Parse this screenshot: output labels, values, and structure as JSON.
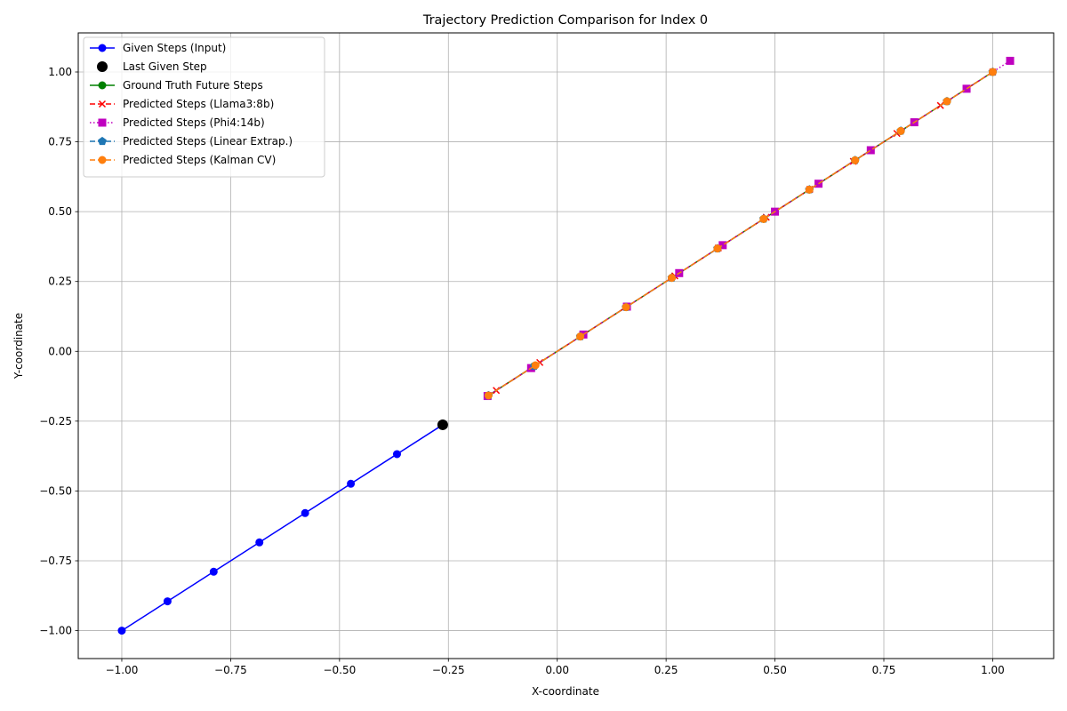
{
  "chart_data": {
    "type": "line",
    "title": "Trajectory Prediction Comparison for Index 0",
    "xlabel": "X-coordinate",
    "ylabel": "Y-coordinate",
    "xlim": [
      -1.1,
      1.14
    ],
    "ylim": [
      -1.1,
      1.14
    ],
    "xticks": [
      -1.0,
      -0.75,
      -0.5,
      -0.25,
      0.0,
      0.25,
      0.5,
      0.75,
      1.0
    ],
    "xtick_labels": [
      "−1.00",
      "−0.75",
      "−0.50",
      "−0.25",
      "0.00",
      "0.25",
      "0.50",
      "0.75",
      "1.00"
    ],
    "yticks": [
      -1.0,
      -0.75,
      -0.5,
      -0.25,
      0.0,
      0.25,
      0.5,
      0.75,
      1.0
    ],
    "ytick_labels": [
      "−1.00",
      "−0.75",
      "−0.50",
      "−0.25",
      "0.00",
      "0.25",
      "0.50",
      "0.75",
      "1.00"
    ],
    "grid": true,
    "legend_position": "top-left",
    "series": [
      {
        "name": "Given Steps (Input)",
        "color": "#0000ff",
        "line": "solid",
        "marker": "circle",
        "x": [
          -1.0,
          -0.895,
          -0.789,
          -0.684,
          -0.579,
          -0.474,
          -0.368,
          -0.263
        ],
        "y": [
          -1.0,
          -0.895,
          -0.789,
          -0.684,
          -0.579,
          -0.474,
          -0.368,
          -0.263
        ]
      },
      {
        "name": "Last Given Step",
        "color": "#000000",
        "line": "none",
        "marker": "big-circle",
        "x": [
          -0.263
        ],
        "y": [
          -0.263
        ]
      },
      {
        "name": "Ground Truth Future Steps",
        "color": "#008000",
        "line": "solid",
        "marker": "circle",
        "x": [
          -0.158,
          -0.053,
          0.053,
          0.158,
          0.263,
          0.368,
          0.474,
          0.579,
          0.684,
          0.789,
          0.895,
          1.0
        ],
        "y": [
          -0.158,
          -0.053,
          0.053,
          0.158,
          0.263,
          0.368,
          0.474,
          0.579,
          0.684,
          0.789,
          0.895,
          1.0
        ]
      },
      {
        "name": "Predicted Steps (Llama3:8b)",
        "color": "#ff0000",
        "line": "dashed",
        "marker": "x",
        "x": [
          -0.14,
          -0.04,
          0.06,
          0.16,
          0.27,
          0.37,
          0.48,
          0.58,
          0.68,
          0.78,
          0.88,
          1.0
        ],
        "y": [
          -0.14,
          -0.04,
          0.06,
          0.16,
          0.27,
          0.37,
          0.48,
          0.58,
          0.68,
          0.78,
          0.88,
          1.0
        ]
      },
      {
        "name": "Predicted Steps (Phi4:14b)",
        "color": "#bf00bf",
        "line": "dotted",
        "marker": "square",
        "x": [
          -0.16,
          -0.06,
          0.06,
          0.16,
          0.28,
          0.38,
          0.5,
          0.6,
          0.72,
          0.82,
          0.94,
          1.04
        ],
        "y": [
          -0.16,
          -0.06,
          0.06,
          0.16,
          0.28,
          0.38,
          0.5,
          0.6,
          0.72,
          0.82,
          0.94,
          1.04
        ]
      },
      {
        "name": "Predicted Steps (Linear Extrap.)",
        "color": "#1f77b4",
        "line": "dashed",
        "marker": "pentagon",
        "x": [
          -0.158,
          -0.053,
          0.053,
          0.158,
          0.263,
          0.368,
          0.474,
          0.579,
          0.684,
          0.789,
          0.895,
          1.0
        ],
        "y": [
          -0.158,
          -0.053,
          0.053,
          0.158,
          0.263,
          0.368,
          0.474,
          0.579,
          0.684,
          0.789,
          0.895,
          1.0
        ]
      },
      {
        "name": "Predicted Steps (Kalman CV)",
        "color": "#ff7f0e",
        "line": "dashed",
        "marker": "circle",
        "x": [
          -0.158,
          -0.05,
          0.053,
          0.158,
          0.263,
          0.368,
          0.474,
          0.579,
          0.684,
          0.789,
          0.895,
          1.0
        ],
        "y": [
          -0.158,
          -0.05,
          0.053,
          0.158,
          0.263,
          0.368,
          0.474,
          0.579,
          0.684,
          0.789,
          0.895,
          1.0
        ]
      }
    ]
  }
}
